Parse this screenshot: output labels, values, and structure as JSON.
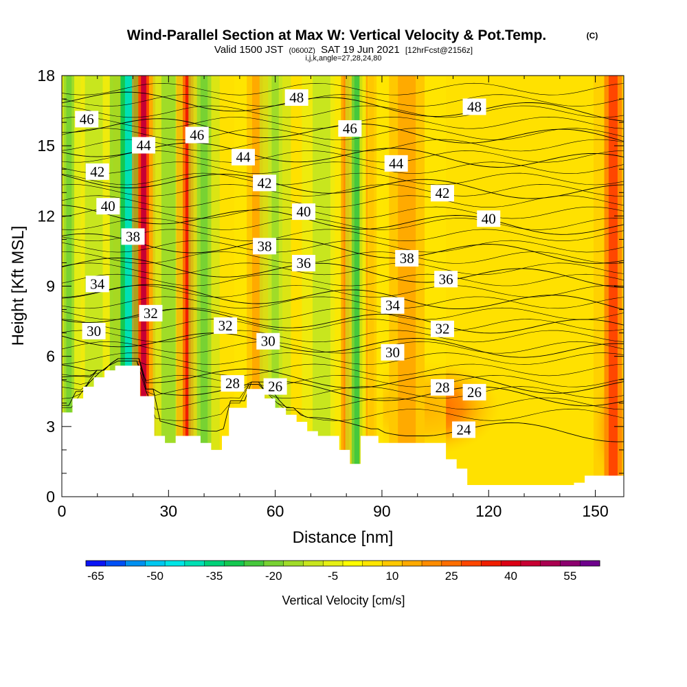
{
  "chart_data": {
    "type": "heatmap",
    "title": "Wind-Parallel Section at Max W: Vertical Velocity & Pot.Temp.",
    "copyright": "(C)",
    "subtitle": {
      "prefix": "Valid 1500 JST",
      "utc": "(0600Z)",
      "date": "SAT 19 Jun 2021",
      "forecast": "[12hrFcst@2156z]"
    },
    "indices": "i,j,k,angle=27,28,24,80",
    "xlabel": "Distance [nm]",
    "ylabel": "Height [Kft MSL]",
    "xlim": [
      0,
      158
    ],
    "ylim": [
      0,
      18
    ],
    "x_ticks": [
      0,
      30,
      60,
      90,
      120,
      150
    ],
    "y_ticks": [
      0,
      3,
      6,
      9,
      12,
      15,
      18
    ],
    "grid": false,
    "colorbar": {
      "label": "Vertical Velocity [cm/s]",
      "tick_labels": [
        "-65",
        "-50",
        "-35",
        "-20",
        "-5",
        "10",
        "25",
        "40",
        "55"
      ],
      "colors": [
        "#0a14f5",
        "#0050f5",
        "#0090f0",
        "#00c8f0",
        "#00e6e6",
        "#00e0b4",
        "#00d278",
        "#14c850",
        "#46c83c",
        "#78d232",
        "#a0dc28",
        "#c8e61e",
        "#e6f014",
        "#ffff00",
        "#ffe600",
        "#ffc800",
        "#ffaa00",
        "#ff8c00",
        "#ff6e00",
        "#ff4600",
        "#f01e00",
        "#dc0014",
        "#c80032",
        "#aa0050",
        "#8c006e",
        "#6e008c"
      ]
    },
    "updraft_bands": [
      {
        "x": 2,
        "width": 3,
        "w": -20
      },
      {
        "x": 9,
        "width": 5,
        "w": -8
      },
      {
        "x": 19,
        "width": 5,
        "w": -40
      },
      {
        "x": 23,
        "width": 3,
        "w": 45
      },
      {
        "x": 30,
        "width": 4,
        "w": -15
      },
      {
        "x": 35.5,
        "width": 3,
        "w": 38
      },
      {
        "x": 40,
        "width": 4,
        "w": -20
      },
      {
        "x": 55,
        "width": 6,
        "w": 15
      },
      {
        "x": 60,
        "width": 4,
        "w": -12
      },
      {
        "x": 73,
        "width": 5,
        "w": -10
      },
      {
        "x": 80,
        "width": 3,
        "w": 20
      },
      {
        "x": 83,
        "width": 3,
        "w": -22
      },
      {
        "x": 87,
        "width": 3,
        "w": 20
      },
      {
        "x": 97,
        "width": 10,
        "w": 15
      },
      {
        "x": 155,
        "width": 5,
        "w": 30
      }
    ],
    "theta_contours": [
      {
        "value": 24,
        "level": 3.0,
        "label": "24",
        "label_x": 113
      },
      {
        "value": 26,
        "level": 4.5,
        "label": "26",
        "label_x": 60,
        "label2": "26",
        "label2_x": 116
      },
      {
        "value": 28,
        "level": 5.0,
        "label": "28",
        "label_x": 48,
        "label2": "28",
        "label2_x": 107
      },
      {
        "value": 30,
        "level": 6.5,
        "label": "30",
        "label_x": 9,
        "label2": "30",
        "label2_x": 58,
        "label3": "30",
        "label3_x": 93
      },
      {
        "value": 32,
        "level": 7.5,
        "label": "32",
        "label_x": 25,
        "label2": "32",
        "label2_x": 46,
        "label3": "32",
        "label3_x": 107
      },
      {
        "value": 34,
        "level": 8.5,
        "label": "34",
        "label_x": 10,
        "label2": "34",
        "label2_x": 93
      },
      {
        "value": 36,
        "level": 9.6,
        "label": "36",
        "label_x": 68,
        "label2": "36",
        "label2_x": 108
      },
      {
        "value": 38,
        "level": 10.6,
        "label": "38",
        "label_x": 20,
        "label2": "38",
        "label2_x": 57,
        "label3": "38",
        "label3_x": 97
      },
      {
        "value": 40,
        "level": 11.8,
        "label": "40",
        "label_x": 13,
        "label2": "40",
        "label2_x": 68,
        "label3": "40",
        "label3_x": 120
      },
      {
        "value": 42,
        "level": 13.3,
        "label": "42",
        "label_x": 10,
        "label2": "42",
        "label2_x": 57,
        "label3": "42",
        "label3_x": 107
      },
      {
        "value": 44,
        "level": 14.6,
        "label": "44",
        "label_x": 23,
        "label2": "44",
        "label2_x": 51,
        "label3": "44",
        "label3_x": 94
      },
      {
        "value": 46,
        "level": 15.6,
        "label": "46",
        "label_x": 7,
        "label2": "46",
        "label2_x": 38,
        "label3": "46",
        "label3_x": 81
      },
      {
        "value": 48,
        "level": 16.7,
        "label": "48",
        "label_x": 66,
        "label2": "48",
        "label2_x": 116
      }
    ],
    "terrain_profile": [
      [
        0,
        3.6
      ],
      [
        3,
        3.6
      ],
      [
        3,
        4.2
      ],
      [
        6,
        4.2
      ],
      [
        6,
        4.7
      ],
      [
        9,
        4.7
      ],
      [
        9,
        5.1
      ],
      [
        12,
        5.1
      ],
      [
        12,
        5.4
      ],
      [
        15,
        5.4
      ],
      [
        15,
        5.6
      ],
      [
        22,
        5.6
      ],
      [
        22,
        4.3
      ],
      [
        26,
        4.3
      ],
      [
        26,
        2.6
      ],
      [
        29,
        2.6
      ],
      [
        29,
        2.3
      ],
      [
        32,
        2.3
      ],
      [
        32,
        2.6
      ],
      [
        39,
        2.6
      ],
      [
        39,
        2.3
      ],
      [
        42,
        2.3
      ],
      [
        42,
        2.0
      ],
      [
        45,
        2.0
      ],
      [
        45,
        2.6
      ],
      [
        47,
        2.6
      ],
      [
        47,
        3.8
      ],
      [
        52,
        3.8
      ],
      [
        52,
        4.6
      ],
      [
        57,
        4.6
      ],
      [
        57,
        4.2
      ],
      [
        60,
        4.2
      ],
      [
        60,
        3.8
      ],
      [
        63,
        3.8
      ],
      [
        63,
        3.5
      ],
      [
        66,
        3.5
      ],
      [
        66,
        3.2
      ],
      [
        69,
        3.2
      ],
      [
        69,
        2.8
      ],
      [
        72,
        2.8
      ],
      [
        72,
        2.6
      ],
      [
        78,
        2.6
      ],
      [
        78,
        2.0
      ],
      [
        81,
        2.0
      ],
      [
        81,
        1.4
      ],
      [
        84,
        1.4
      ],
      [
        84,
        2.6
      ],
      [
        89,
        2.6
      ],
      [
        89,
        2.3
      ],
      [
        108,
        2.3
      ],
      [
        108,
        1.6
      ],
      [
        111,
        1.6
      ],
      [
        111,
        1.2
      ],
      [
        114,
        1.2
      ],
      [
        114,
        0.5
      ],
      [
        137,
        0.5
      ],
      [
        137,
        0.5
      ],
      [
        144,
        0.5
      ],
      [
        144,
        0.6
      ],
      [
        147,
        0.6
      ],
      [
        147,
        0.9
      ],
      [
        158,
        0.9
      ]
    ]
  }
}
